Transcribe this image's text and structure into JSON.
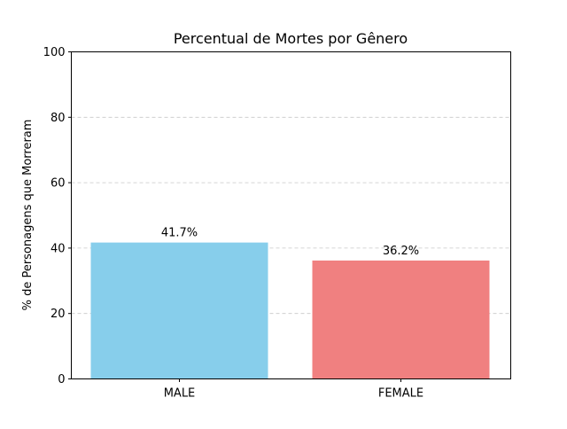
{
  "chart_data": {
    "type": "bar",
    "title": "Percentual de Mortes por Gênero",
    "xlabel": "",
    "ylabel": "% de Personagens que Morreram",
    "categories": [
      "MALE",
      "FEMALE"
    ],
    "values": [
      41.7,
      36.2
    ],
    "value_labels": [
      "41.7%",
      "36.2%"
    ],
    "colors": [
      "#87ceeb",
      "#f08080"
    ],
    "ylim": [
      0,
      100
    ],
    "yticks": [
      0,
      20,
      40,
      60,
      80,
      100
    ],
    "ytick_labels": [
      "0",
      "20",
      "40",
      "60",
      "80",
      "100"
    ],
    "grid": "y-dashed",
    "legend": "none"
  }
}
